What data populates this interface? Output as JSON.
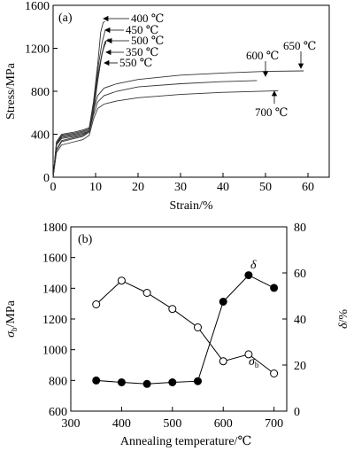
{
  "chart_data": [
    {
      "panel": "(a)",
      "type": "line",
      "xlabel": "Strain/%",
      "ylabel": "Stress/MPa",
      "xlim": [
        0,
        65
      ],
      "ylim": [
        0,
        1600
      ],
      "xticks": [
        "0",
        "10",
        "20",
        "30",
        "40",
        "50",
        "60"
      ],
      "yticks": [
        "0",
        "400",
        "800",
        "1200",
        "1600"
      ],
      "series": [
        {
          "name": "350 ℃",
          "x": [
            0,
            0.8,
            2,
            5,
            7,
            8.5,
            9.5,
            10.5,
            11.5,
            12.2,
            12.5
          ],
          "y": [
            0,
            300,
            360,
            380,
            400,
            430,
            600,
            900,
            1150,
            1260,
            1270
          ]
        },
        {
          "name": "400 ℃",
          "x": [
            0,
            0.8,
            2,
            5,
            7,
            8.5,
            9.5,
            10.5,
            11.2,
            11.8,
            12.2
          ],
          "y": [
            0,
            330,
            400,
            420,
            440,
            460,
            700,
            1050,
            1350,
            1440,
            1450
          ]
        },
        {
          "name": "450 ℃",
          "x": [
            0,
            0.8,
            2,
            5,
            7,
            8.5,
            9.5,
            10.5,
            11.5,
            12.3,
            12.8
          ],
          "y": [
            0,
            320,
            390,
            410,
            430,
            450,
            680,
            1000,
            1250,
            1370,
            1380
          ]
        },
        {
          "name": "500 ℃",
          "x": [
            0,
            0.8,
            2,
            5,
            7,
            8.5,
            9.5,
            10.5,
            11.5,
            12.5,
            13.2
          ],
          "y": [
            0,
            310,
            380,
            400,
            420,
            440,
            650,
            950,
            1150,
            1270,
            1290
          ]
        },
        {
          "name": "550 ℃",
          "x": [
            0,
            0.8,
            2,
            5,
            7,
            8.5,
            9.5,
            10.5,
            11.3,
            12,
            12.5
          ],
          "y": [
            0,
            300,
            370,
            390,
            410,
            430,
            620,
            900,
            1100,
            1230,
            1250
          ]
        },
        {
          "name": "600 ℃",
          "x": [
            0,
            0.8,
            2,
            5,
            7,
            8.5,
            9.5,
            10.5,
            12,
            15,
            20,
            30,
            40,
            48
          ],
          "y": [
            0,
            250,
            330,
            360,
            380,
            420,
            580,
            700,
            760,
            800,
            840,
            870,
            890,
            900
          ]
        },
        {
          "name": "650 ℃",
          "x": [
            0,
            0.8,
            2,
            5,
            7,
            8.5,
            9.5,
            10.5,
            12,
            15,
            20,
            30,
            40,
            50,
            59
          ],
          "y": [
            0,
            260,
            340,
            370,
            390,
            430,
            620,
            760,
            830,
            870,
            910,
            950,
            970,
            985,
            990
          ]
        },
        {
          "name": "700 ℃",
          "x": [
            0,
            0.8,
            2,
            5,
            7,
            8.5,
            9.5,
            10.5,
            12,
            15,
            20,
            30,
            40,
            53
          ],
          "y": [
            0,
            230,
            300,
            330,
            350,
            390,
            540,
            640,
            680,
            710,
            740,
            770,
            790,
            805
          ]
        }
      ]
    },
    {
      "panel": "(b)",
      "type": "line",
      "xlabel": "Annealing temperature/℃",
      "ylabel_left_main": "σ",
      "ylabel_left_sub": "b",
      "ylabel_left_unit": "/MPa",
      "ylabel_right_main": "δ",
      "ylabel_right_unit": "/%",
      "xlim": [
        300,
        725
      ],
      "ylim_left": [
        600,
        1800
      ],
      "ylim_right": [
        0,
        80
      ],
      "xticks": [
        "300",
        "400",
        "500",
        "600",
        "700"
      ],
      "yticks_left": [
        "600",
        "800",
        "1000",
        "1200",
        "1400",
        "1600",
        "1800"
      ],
      "yticks_right": [
        "0",
        "20",
        "40",
        "60",
        "80"
      ],
      "series": [
        {
          "name_main": "σ",
          "name_sub": "b",
          "axis": "left",
          "marker": "open-circle",
          "x": [
            350,
            400,
            450,
            500,
            550,
            600,
            650,
            700
          ],
          "y": [
            1295,
            1450,
            1370,
            1265,
            1145,
            925,
            970,
            845
          ]
        },
        {
          "name_main": "δ",
          "axis": "right",
          "marker": "filled-circle",
          "x": [
            350,
            400,
            450,
            500,
            550,
            600,
            650,
            700
          ],
          "y": [
            13.3,
            12.5,
            11.8,
            12.5,
            13.0,
            47.5,
            59.0,
            53.5
          ]
        }
      ]
    }
  ]
}
